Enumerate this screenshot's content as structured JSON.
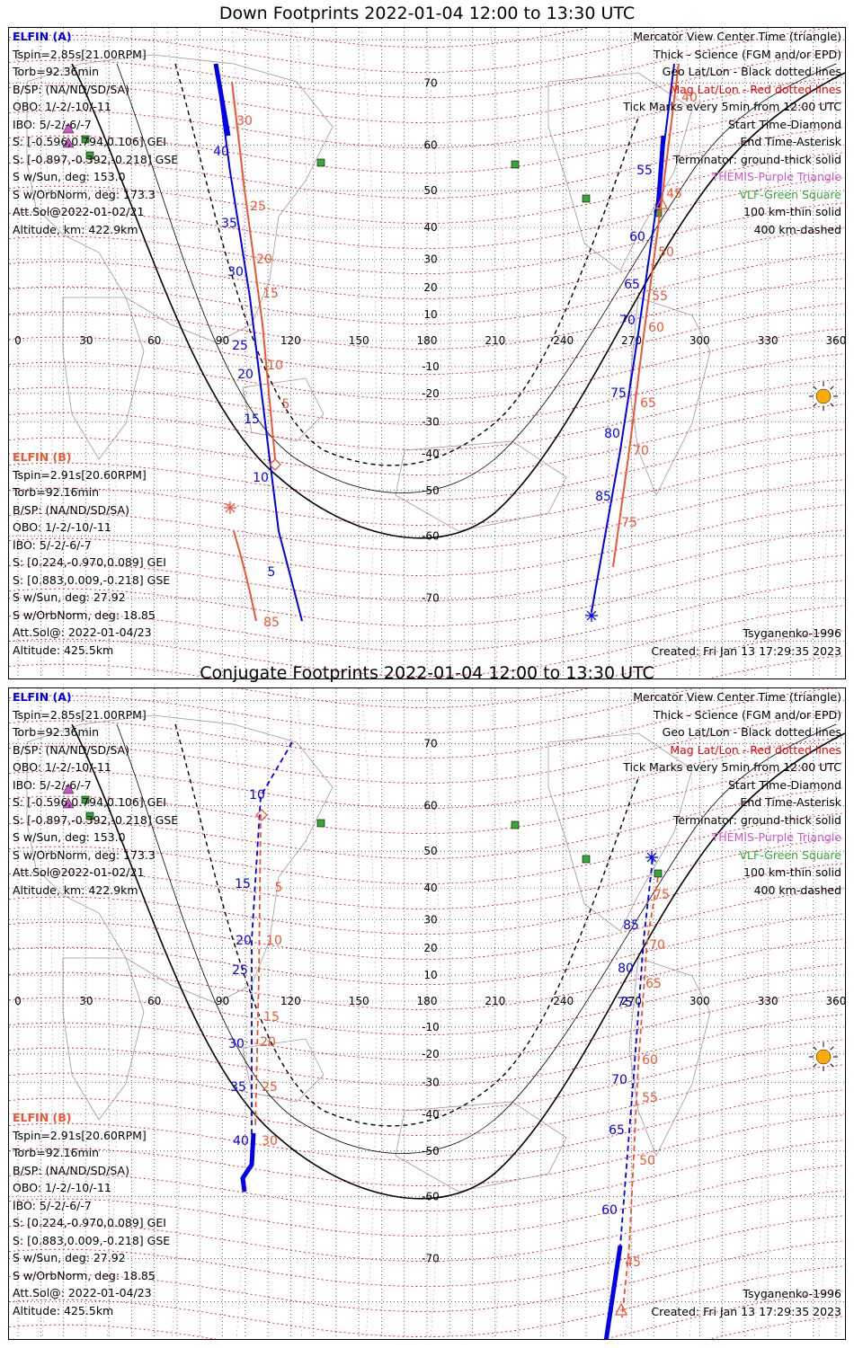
{
  "panels": [
    {
      "title": "Down Footprints 2022-01-04 12:00 to 13:30 UTC",
      "elfin_a": {
        "name": "ELFIN (A)",
        "lines": [
          "Tspin=2.85s[21.00RPM]",
          "Torb=92.36min",
          "B/SP: (NA/ND/SD/SA)",
          "OBO: 1/-2/-10/-11",
          "IBO: 5/-2/-6/-7",
          "S: [-0.596,0.794,0.106] GEI",
          "S: [-0.897,-0.392,-0.218] GSE",
          "S w/Sun, deg: 153.0",
          "S w/OrbNorm, deg: 173.3",
          "Att.Sol@2022-01-02/21",
          "Altitude, km: 422.9km"
        ]
      },
      "elfin_b": {
        "name": "ELFIN (B)",
        "lines": [
          "Tspin=2.91s[20.60RPM]",
          "Torb=92.16min",
          "B/SP: (NA/ND/SD/SA)",
          "OBO: 1/-2/-10/-11",
          "IBO: 5/-2/-6/-7",
          "S: [0.224,-0.970,0.089] GEI",
          "S: [0.883,0.009,-0.218] GSE",
          "S w/Sun, deg: 27.92",
          "S w/OrbNorm, deg: 18.85",
          "Att.Sol@: 2022-01-04/23",
          "Altitude: 425.5km"
        ]
      },
      "legend": [
        "Mercator View Center Time (triangle)",
        "Thick - Science (FGM and/or EPD)",
        "Geo Lat/Lon - Black dotted lines",
        "Mag Lat/Lon - Red dotted lines",
        "Tick Marks every 5min from 12:00 UTC",
        "Start Time-Diamond",
        "End Time-Asterisk",
        "Terminator: ground-thick solid",
        "THEMIS-Purple Triangle",
        "VLF-Green Square",
        "100 km-thin solid",
        "400 km-dashed"
      ],
      "model": "Tsyganenko-1996",
      "created": "Created: Fri Jan 13 17:29:35 2023",
      "blue_labels_left": [
        "40",
        "35",
        "30",
        "25",
        "20",
        "15",
        "10",
        "5"
      ],
      "red_labels_left": [
        "30",
        "25",
        "20",
        "15",
        "10",
        "5",
        "85"
      ],
      "blue_labels_right": [
        "55",
        "60",
        "65",
        "70",
        "75",
        "80",
        "85"
      ],
      "red_labels_right": [
        "40",
        "45",
        "50",
        "55",
        "60",
        "65",
        "70",
        "75"
      ]
    },
    {
      "title": "Conjugate Footprints 2022-01-04 12:00 to 13:30 UTC",
      "elfin_a": {
        "name": "ELFIN (A)",
        "lines": [
          "Tspin=2.85s[21.00RPM]",
          "Torb=92.36min",
          "B/SP: (NA/ND/SD/SA)",
          "OBO: 1/-2/-10/-11",
          "IBO: 5/-2/-6/-7",
          "S: [-0.596,0.794,0.106] GEI",
          "S: [-0.897,-0.392,-0.218] GSE",
          "S w/Sun, deg: 153.0",
          "S w/OrbNorm, deg: 173.3",
          "Att.Sol@2022-01-02/21",
          "Altitude, km: 422.9km"
        ]
      },
      "elfin_b": {
        "name": "ELFIN (B)",
        "lines": [
          "Tspin=2.91s[20.60RPM]",
          "Torb=92.16min",
          "B/SP: (NA/ND/SD/SA)",
          "OBO: 1/-2/-10/-11",
          "IBO: 5/-2/-6/-7",
          "S: [0.224,-0.970,0.089] GEI",
          "S: [0.883,0.009,-0.218] GSE",
          "S w/Sun, deg: 27.92",
          "S w/OrbNorm, deg: 18.85",
          "Att.Sol@: 2022-01-04/23",
          "Altitude: 425.5km"
        ]
      },
      "legend": [
        "Mercator View Center Time (triangle)",
        "Thick - Science (FGM and/or EPD)",
        "Geo Lat/Lon - Black dotted lines",
        "Mag Lat/Lon - Red dotted lines",
        "Tick Marks every 5min from 12:00 UTC",
        "Start Time-Diamond",
        "End Time-Asterisk",
        "Terminator: ground-thick solid",
        "THEMIS-Purple Triangle",
        "VLF-Green Square",
        "100 km-thin solid",
        "400 km-dashed"
      ],
      "model": "Tsyganenko-1996",
      "created": "Created: Fri Jan 13 17:29:35 2023",
      "blue_labels_left": [
        "10",
        "15",
        "20",
        "25",
        "30",
        "35",
        "40"
      ],
      "red_labels_left": [
        "5",
        "10",
        "15",
        "20",
        "25",
        "30"
      ],
      "blue_labels_right": [
        "85",
        "80",
        "75",
        "70",
        "65",
        "60"
      ],
      "red_labels_right": [
        "75",
        "70",
        "65",
        "60",
        "55",
        "50",
        "45"
      ]
    }
  ],
  "map": {
    "lon_ticks": [
      "0",
      "30",
      "60",
      "90",
      "120",
      "150",
      "180",
      "210",
      "240",
      "270",
      "300",
      "330",
      "360"
    ],
    "lat_ticks": [
      "70",
      "60",
      "50",
      "40",
      "30",
      "20",
      "10",
      "-10",
      "-20",
      "-30",
      "-40",
      "-50",
      "-60",
      "-70"
    ],
    "colors": {
      "elfin_a": "#0000ee",
      "elfin_b": "#ee5533",
      "mag_grid": "#ee0000",
      "geo_grid": "#000000",
      "themis": "#cc55cc",
      "vlf": "#33aa33",
      "sun": "#ffaa00"
    }
  }
}
